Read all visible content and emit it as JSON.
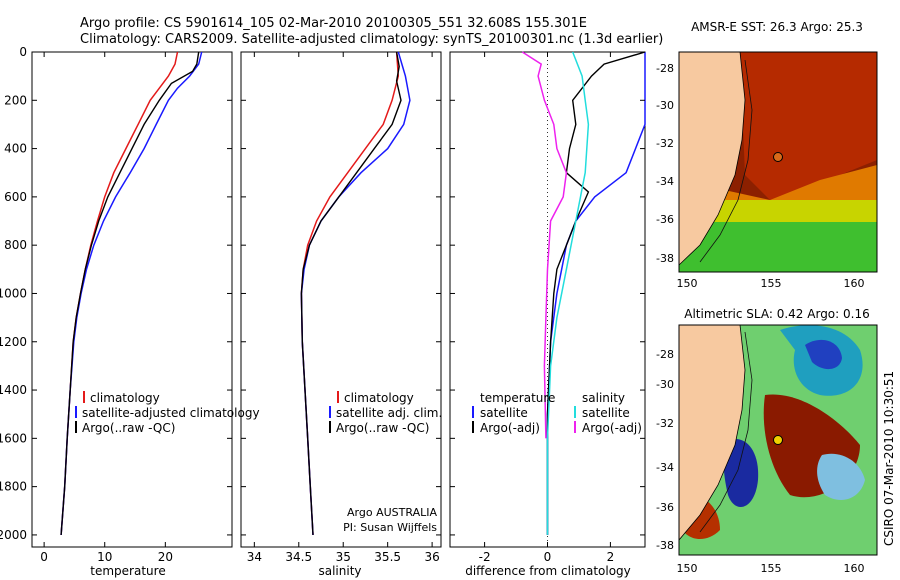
{
  "header": {
    "line1": "Argo profile: CS 5901614_105 02-Mar-2010 20100305_551 32.608S 155.301E",
    "line2": "Climatology: CARS2009. Satellite-adjusted climatology: synTS_20100301.nc (1.3d earlier)"
  },
  "colors": {
    "climatology": "#e41a1a",
    "satellite": "#1a1aff",
    "argo": "#000000",
    "argo_adj": "#ee22ee",
    "sal_satellite": "#22dddd",
    "land": "#f7c9a0"
  },
  "chart_data": [
    {
      "type": "line",
      "id": "temperature",
      "xlabel": "temperature",
      "xlim": [
        -2,
        31
      ],
      "ylim": [
        2050,
        0
      ],
      "xticks": [
        0,
        10,
        20
      ],
      "yticks": [
        0,
        200,
        400,
        600,
        800,
        1000,
        1200,
        1400,
        1600,
        1800,
        2000
      ],
      "legend": [
        "climatology",
        "satellite-adjusted climatology",
        "Argo(..raw -QC)"
      ],
      "series": [
        {
          "name": "climatology",
          "color": "#e41a1a",
          "points": [
            [
              22,
              0
            ],
            [
              21.6,
              50
            ],
            [
              20.5,
              100
            ],
            [
              19,
              150
            ],
            [
              17.5,
              200
            ],
            [
              15.5,
              300
            ],
            [
              13.5,
              400
            ],
            [
              11.5,
              500
            ],
            [
              10,
              600
            ],
            [
              8.8,
              700
            ],
            [
              7.7,
              800
            ],
            [
              6.8,
              900
            ],
            [
              6,
              1000
            ],
            [
              5.3,
              1100
            ],
            [
              4.8,
              1200
            ],
            [
              4.3,
              1400
            ],
            [
              3.8,
              1600
            ],
            [
              3.4,
              1800
            ],
            [
              2.8,
              2000
            ]
          ]
        },
        {
          "name": "satellite-adjusted climatology",
          "color": "#1a1aff",
          "points": [
            [
              26,
              0
            ],
            [
              25.5,
              50
            ],
            [
              24,
              100
            ],
            [
              22,
              150
            ],
            [
              20.5,
              200
            ],
            [
              18.5,
              300
            ],
            [
              16.5,
              400
            ],
            [
              14.2,
              500
            ],
            [
              11.8,
              600
            ],
            [
              9.8,
              700
            ],
            [
              8.2,
              800
            ],
            [
              7,
              900
            ],
            [
              6.1,
              1000
            ],
            [
              5.4,
              1100
            ],
            [
              4.9,
              1200
            ],
            [
              4.3,
              1400
            ],
            [
              3.8,
              1600
            ],
            [
              3.4,
              1800
            ],
            [
              2.8,
              2000
            ]
          ]
        },
        {
          "name": "Argo(..raw -QC)",
          "color": "#000000",
          "points": [
            [
              25.5,
              0
            ],
            [
              25.2,
              50
            ],
            [
              24.5,
              80
            ],
            [
              21,
              130
            ],
            [
              19,
              200
            ],
            [
              16.5,
              300
            ],
            [
              14.5,
              400
            ],
            [
              12.5,
              500
            ],
            [
              10.5,
              600
            ],
            [
              9,
              700
            ],
            [
              7.8,
              800
            ],
            [
              6.8,
              900
            ],
            [
              6,
              1000
            ],
            [
              5.3,
              1100
            ],
            [
              4.8,
              1200
            ],
            [
              4.3,
              1400
            ],
            [
              3.8,
              1600
            ],
            [
              3.4,
              1800
            ],
            [
              2.8,
              2000
            ]
          ]
        }
      ]
    },
    {
      "type": "line",
      "id": "salinity",
      "xlabel": "salinity",
      "xlim": [
        33.85,
        36.1
      ],
      "ylim": [
        2050,
        0
      ],
      "xticks": [
        34,
        34.5,
        35,
        35.5,
        36
      ],
      "legend": [
        "climatology",
        "satellite adj. clim.",
        "Argo(..raw -QC)"
      ],
      "series": [
        {
          "name": "climatology",
          "color": "#e41a1a",
          "points": [
            [
              35.6,
              0
            ],
            [
              35.62,
              100
            ],
            [
              35.55,
              200
            ],
            [
              35.45,
              300
            ],
            [
              35.25,
              400
            ],
            [
              35.05,
              500
            ],
            [
              34.85,
              600
            ],
            [
              34.7,
              700
            ],
            [
              34.6,
              800
            ],
            [
              34.55,
              900
            ],
            [
              34.53,
              1000
            ],
            [
              34.54,
              1200
            ],
            [
              34.57,
              1400
            ],
            [
              34.6,
              1600
            ],
            [
              34.63,
              1800
            ],
            [
              34.66,
              2000
            ]
          ]
        },
        {
          "name": "satellite adj. clim.",
          "color": "#1a1aff",
          "points": [
            [
              35.62,
              0
            ],
            [
              35.7,
              100
            ],
            [
              35.75,
              200
            ],
            [
              35.68,
              300
            ],
            [
              35.5,
              400
            ],
            [
              35.2,
              500
            ],
            [
              34.95,
              600
            ],
            [
              34.75,
              700
            ],
            [
              34.62,
              800
            ],
            [
              34.56,
              900
            ],
            [
              34.53,
              1000
            ],
            [
              34.54,
              1200
            ],
            [
              34.57,
              1400
            ],
            [
              34.6,
              1600
            ],
            [
              34.63,
              1800
            ],
            [
              34.66,
              2000
            ]
          ]
        },
        {
          "name": "Argo(..raw -QC)",
          "color": "#000000",
          "points": [
            [
              35.6,
              0
            ],
            [
              35.63,
              60
            ],
            [
              35.6,
              120
            ],
            [
              35.65,
              200
            ],
            [
              35.55,
              300
            ],
            [
              35.35,
              400
            ],
            [
              35.15,
              500
            ],
            [
              34.95,
              600
            ],
            [
              34.75,
              700
            ],
            [
              34.62,
              800
            ],
            [
              34.55,
              900
            ],
            [
              34.53,
              1000
            ],
            [
              34.54,
              1200
            ],
            [
              34.57,
              1400
            ],
            [
              34.6,
              1600
            ],
            [
              34.63,
              1800
            ],
            [
              34.66,
              2000
            ]
          ]
        }
      ],
      "annotations": [
        "Argo AUSTRALIA",
        "PI: Susan Wijffels"
      ]
    },
    {
      "type": "line",
      "id": "difference",
      "xlabel": "difference from climatology",
      "xlim": [
        -3.1,
        3.1
      ],
      "ylim": [
        2050,
        0
      ],
      "xticks": [
        -2,
        0,
        2
      ],
      "legend_temperature": {
        "title": "temperature",
        "items": [
          "satellite",
          "Argo(-adj)"
        ]
      },
      "legend_salinity": {
        "title": "salinity",
        "items": [
          "satellite",
          "Argo(-adj)"
        ]
      },
      "series": [
        {
          "name": "temperature satellite",
          "color": "#1a1aff",
          "points": [
            [
              3.1,
              0
            ],
            [
              3.3,
              150
            ],
            [
              3.3,
              300
            ],
            [
              2.5,
              500
            ],
            [
              1.5,
              600
            ],
            [
              0.9,
              700
            ],
            [
              0.6,
              800
            ],
            [
              0.3,
              1000
            ],
            [
              0.1,
              1200
            ],
            [
              0,
              1500
            ],
            [
              0,
              2000
            ]
          ]
        },
        {
          "name": "temperature Argo(-adj)",
          "color": "#000000",
          "points": [
            [
              3.1,
              0
            ],
            [
              1.8,
              50
            ],
            [
              1.4,
              100
            ],
            [
              0.8,
              200
            ],
            [
              0.9,
              300
            ],
            [
              0.7,
              400
            ],
            [
              0.6,
              500
            ],
            [
              1.3,
              580
            ],
            [
              0.9,
              700
            ],
            [
              0.6,
              800
            ],
            [
              0.3,
              900
            ],
            [
              0.2,
              1000
            ],
            [
              0.1,
              1200
            ],
            [
              0,
              1500
            ],
            [
              0,
              2000
            ]
          ]
        },
        {
          "name": "salinity satellite",
          "color": "#22dddd",
          "points": [
            [
              0.8,
              0
            ],
            [
              1.1,
              100
            ],
            [
              1.2,
              200
            ],
            [
              1.3,
              300
            ],
            [
              1.2,
              500
            ],
            [
              0.9,
              700
            ],
            [
              0.6,
              900
            ],
            [
              0.3,
              1100
            ],
            [
              0.1,
              1300
            ],
            [
              0,
              1600
            ],
            [
              0,
              2000
            ]
          ]
        },
        {
          "name": "salinity Argo(-adj)",
          "color": "#ee22ee",
          "points": [
            [
              -0.8,
              0
            ],
            [
              -0.2,
              50
            ],
            [
              -0.3,
              100
            ],
            [
              -0.1,
              200
            ],
            [
              0.2,
              300
            ],
            [
              0.3,
              400
            ],
            [
              0.6,
              500
            ],
            [
              0.5,
              600
            ],
            [
              0.1,
              700
            ],
            [
              0,
              900
            ],
            [
              -0.05,
              1100
            ],
            [
              -0.1,
              1300
            ],
            [
              -0.05,
              1600
            ]
          ]
        }
      ]
    }
  ],
  "maps": {
    "sst": {
      "title": "AMSR-E SST: 26.3 Argo: 25.3",
      "xticks": [
        "150",
        "155",
        "160"
      ],
      "yticks": [
        "-28",
        "-30",
        "-32",
        "-34",
        "-36",
        "-38"
      ],
      "argo_point": {
        "lon": 155.3,
        "lat": -32.6
      }
    },
    "sla": {
      "title": "Altimetric SLA: 0.42 Argo: 0.16",
      "xticks": [
        "150",
        "155",
        "160"
      ],
      "yticks": [
        "-28",
        "-30",
        "-32",
        "-34",
        "-36",
        "-38"
      ],
      "argo_point": {
        "lon": 155.3,
        "lat": -32.6
      }
    }
  },
  "footer_stamp": "CSIRO 07-Mar-2010 10:30:51"
}
